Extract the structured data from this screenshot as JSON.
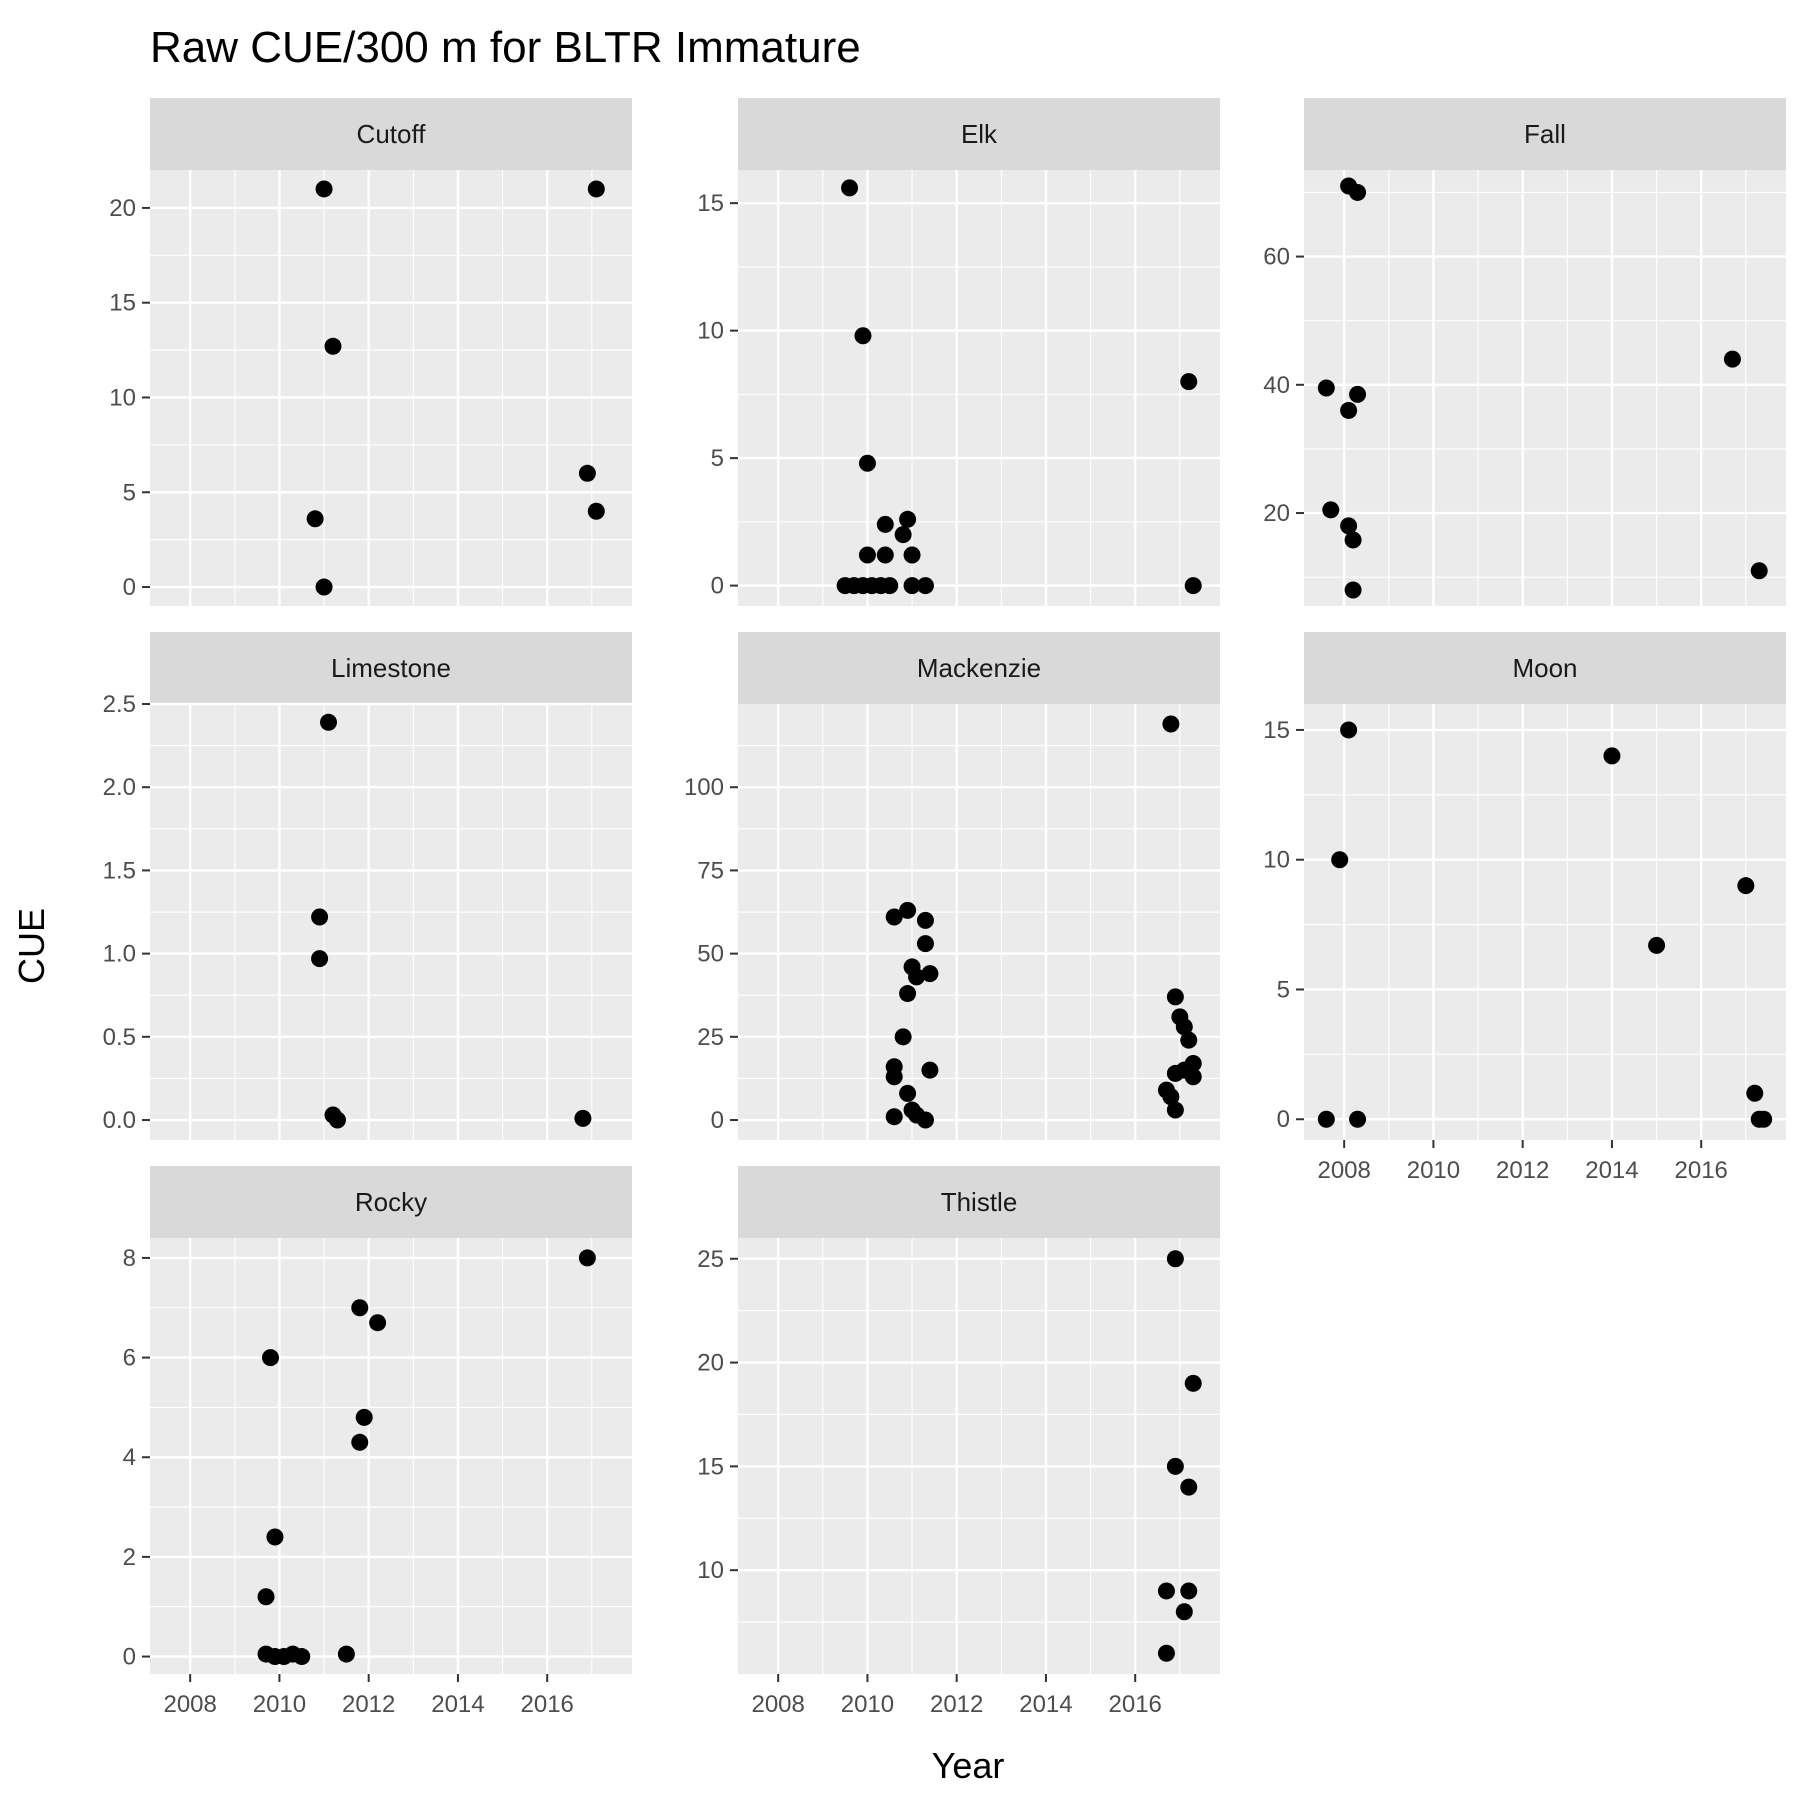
{
  "chart_data": {
    "type": "scatter",
    "title": "Raw CUE/300 m for BLTR Immature",
    "xlabel": "Year",
    "ylabel": "CUE",
    "x_ticks": [
      2008,
      2010,
      2012,
      2014,
      2016
    ],
    "xlim": [
      2007.1,
      2017.9
    ],
    "grid": true,
    "colors": {
      "panel_bg": "#ebebeb",
      "strip_bg": "#d9d9d9",
      "grid": "#ffffff",
      "point": "#000000"
    },
    "panels": [
      {
        "name": "Cutoff",
        "ylim": [
          -1,
          22
        ],
        "y_ticks": [
          0,
          5,
          10,
          15,
          20
        ],
        "show_x_axis": false,
        "points": [
          {
            "x": 2011.0,
            "y": 21.0
          },
          {
            "x": 2011.2,
            "y": 12.7
          },
          {
            "x": 2010.8,
            "y": 3.6
          },
          {
            "x": 2011.0,
            "y": 0.0
          },
          {
            "x": 2017.1,
            "y": 21.0
          },
          {
            "x": 2016.9,
            "y": 6.0
          },
          {
            "x": 2017.1,
            "y": 4.0
          }
        ]
      },
      {
        "name": "Elk",
        "ylim": [
          -0.8,
          16.3
        ],
        "y_ticks": [
          0,
          5,
          10,
          15
        ],
        "show_x_axis": false,
        "points": [
          {
            "x": 2009.6,
            "y": 15.6
          },
          {
            "x": 2009.9,
            "y": 9.8
          },
          {
            "x": 2010.0,
            "y": 4.8
          },
          {
            "x": 2009.5,
            "y": 0.0
          },
          {
            "x": 2009.7,
            "y": 0.0
          },
          {
            "x": 2009.9,
            "y": 0.0
          },
          {
            "x": 2010.1,
            "y": 0.0
          },
          {
            "x": 2010.3,
            "y": 0.0
          },
          {
            "x": 2010.5,
            "y": 0.0
          },
          {
            "x": 2011.0,
            "y": 0.0
          },
          {
            "x": 2011.3,
            "y": 0.0
          },
          {
            "x": 2010.0,
            "y": 1.2
          },
          {
            "x": 2010.4,
            "y": 1.2
          },
          {
            "x": 2010.4,
            "y": 2.4
          },
          {
            "x": 2010.8,
            "y": 2.0
          },
          {
            "x": 2010.9,
            "y": 2.6
          },
          {
            "x": 2011.0,
            "y": 1.2
          },
          {
            "x": 2017.2,
            "y": 8.0
          },
          {
            "x": 2017.3,
            "y": 0.0
          }
        ]
      },
      {
        "name": "Fall",
        "ylim": [
          5.5,
          73.5
        ],
        "y_ticks": [
          20,
          40,
          60
        ],
        "show_x_axis": false,
        "points": [
          {
            "x": 2008.1,
            "y": 71.0
          },
          {
            "x": 2008.3,
            "y": 70.0
          },
          {
            "x": 2007.6,
            "y": 39.5
          },
          {
            "x": 2008.3,
            "y": 38.5
          },
          {
            "x": 2008.1,
            "y": 36.0
          },
          {
            "x": 2007.7,
            "y": 20.5
          },
          {
            "x": 2008.1,
            "y": 18.0
          },
          {
            "x": 2008.2,
            "y": 15.8
          },
          {
            "x": 2008.2,
            "y": 8.0
          },
          {
            "x": 2016.7,
            "y": 44.0
          },
          {
            "x": 2017.3,
            "y": 11.0
          }
        ]
      },
      {
        "name": "Limestone",
        "ylim": [
          -0.12,
          2.5
        ],
        "y_ticks": [
          0.0,
          0.5,
          1.0,
          1.5,
          2.0,
          2.5
        ],
        "y_tick_labels": [
          "0.0",
          "0.5",
          "1.0",
          "1.5",
          "2.0",
          "2.5"
        ],
        "show_x_axis": false,
        "points": [
          {
            "x": 2011.1,
            "y": 2.39
          },
          {
            "x": 2010.9,
            "y": 1.22
          },
          {
            "x": 2010.9,
            "y": 0.97
          },
          {
            "x": 2011.2,
            "y": 0.03
          },
          {
            "x": 2011.3,
            "y": 0.0
          },
          {
            "x": 2016.8,
            "y": 0.01
          }
        ]
      },
      {
        "name": "Mackenzie",
        "ylim": [
          -6,
          125
        ],
        "y_ticks": [
          0,
          25,
          50,
          75,
          100
        ],
        "show_x_axis": false,
        "points": [
          {
            "x": 2010.6,
            "y": 61.0
          },
          {
            "x": 2010.9,
            "y": 63.0
          },
          {
            "x": 2011.3,
            "y": 60.0
          },
          {
            "x": 2011.3,
            "y": 53.0
          },
          {
            "x": 2011.0,
            "y": 46.0
          },
          {
            "x": 2011.1,
            "y": 43.0
          },
          {
            "x": 2011.4,
            "y": 44.0
          },
          {
            "x": 2010.9,
            "y": 38.0
          },
          {
            "x": 2010.8,
            "y": 25.0
          },
          {
            "x": 2010.6,
            "y": 16.0
          },
          {
            "x": 2010.6,
            "y": 13.0
          },
          {
            "x": 2011.4,
            "y": 15.0
          },
          {
            "x": 2010.9,
            "y": 8.0
          },
          {
            "x": 2011.0,
            "y": 3.0
          },
          {
            "x": 2010.6,
            "y": 1.0
          },
          {
            "x": 2011.1,
            "y": 1.5
          },
          {
            "x": 2011.3,
            "y": 0.0
          },
          {
            "x": 2016.8,
            "y": 119.0
          },
          {
            "x": 2016.9,
            "y": 37.0
          },
          {
            "x": 2017.0,
            "y": 31.0
          },
          {
            "x": 2017.1,
            "y": 28.0
          },
          {
            "x": 2017.2,
            "y": 24.0
          },
          {
            "x": 2017.3,
            "y": 17.0
          },
          {
            "x": 2017.1,
            "y": 15.0
          },
          {
            "x": 2016.9,
            "y": 14.0
          },
          {
            "x": 2017.3,
            "y": 13.0
          },
          {
            "x": 2016.7,
            "y": 9.0
          },
          {
            "x": 2016.8,
            "y": 7.0
          },
          {
            "x": 2016.9,
            "y": 3.0
          }
        ]
      },
      {
        "name": "Moon",
        "ylim": [
          -0.8,
          16.0
        ],
        "y_ticks": [
          0,
          5,
          10,
          15
        ],
        "show_x_axis": true,
        "points": [
          {
            "x": 2008.1,
            "y": 15.0
          },
          {
            "x": 2007.9,
            "y": 10.0
          },
          {
            "x": 2007.6,
            "y": 0.0
          },
          {
            "x": 2008.3,
            "y": 0.0
          },
          {
            "x": 2014.0,
            "y": 14.0
          },
          {
            "x": 2015.0,
            "y": 6.7
          },
          {
            "x": 2017.0,
            "y": 9.0
          },
          {
            "x": 2017.2,
            "y": 1.0
          },
          {
            "x": 2017.3,
            "y": 0.0
          },
          {
            "x": 2017.4,
            "y": 0.0
          }
        ]
      },
      {
        "name": "Rocky",
        "ylim": [
          -0.35,
          8.4
        ],
        "y_ticks": [
          0,
          2,
          4,
          6,
          8
        ],
        "show_x_axis": true,
        "points": [
          {
            "x": 2009.8,
            "y": 6.0
          },
          {
            "x": 2009.9,
            "y": 2.4
          },
          {
            "x": 2009.7,
            "y": 1.2
          },
          {
            "x": 2009.7,
            "y": 0.05
          },
          {
            "x": 2009.9,
            "y": 0.0
          },
          {
            "x": 2010.1,
            "y": 0.0
          },
          {
            "x": 2010.3,
            "y": 0.05
          },
          {
            "x": 2010.5,
            "y": 0.0
          },
          {
            "x": 2011.8,
            "y": 7.0
          },
          {
            "x": 2012.2,
            "y": 6.7
          },
          {
            "x": 2011.9,
            "y": 4.8
          },
          {
            "x": 2011.8,
            "y": 4.3
          },
          {
            "x": 2011.5,
            "y": 0.05
          },
          {
            "x": 2016.9,
            "y": 8.0
          }
        ]
      },
      {
        "name": "Thistle",
        "ylim": [
          5,
          26
        ],
        "y_ticks": [
          10,
          15,
          20,
          25
        ],
        "show_x_axis": true,
        "points": [
          {
            "x": 2016.9,
            "y": 25.0
          },
          {
            "x": 2017.3,
            "y": 19.0
          },
          {
            "x": 2016.9,
            "y": 15.0
          },
          {
            "x": 2017.2,
            "y": 14.0
          },
          {
            "x": 2016.7,
            "y": 9.0
          },
          {
            "x": 2017.2,
            "y": 9.0
          },
          {
            "x": 2017.1,
            "y": 8.0
          },
          {
            "x": 2016.7,
            "y": 6.0
          }
        ]
      }
    ]
  }
}
